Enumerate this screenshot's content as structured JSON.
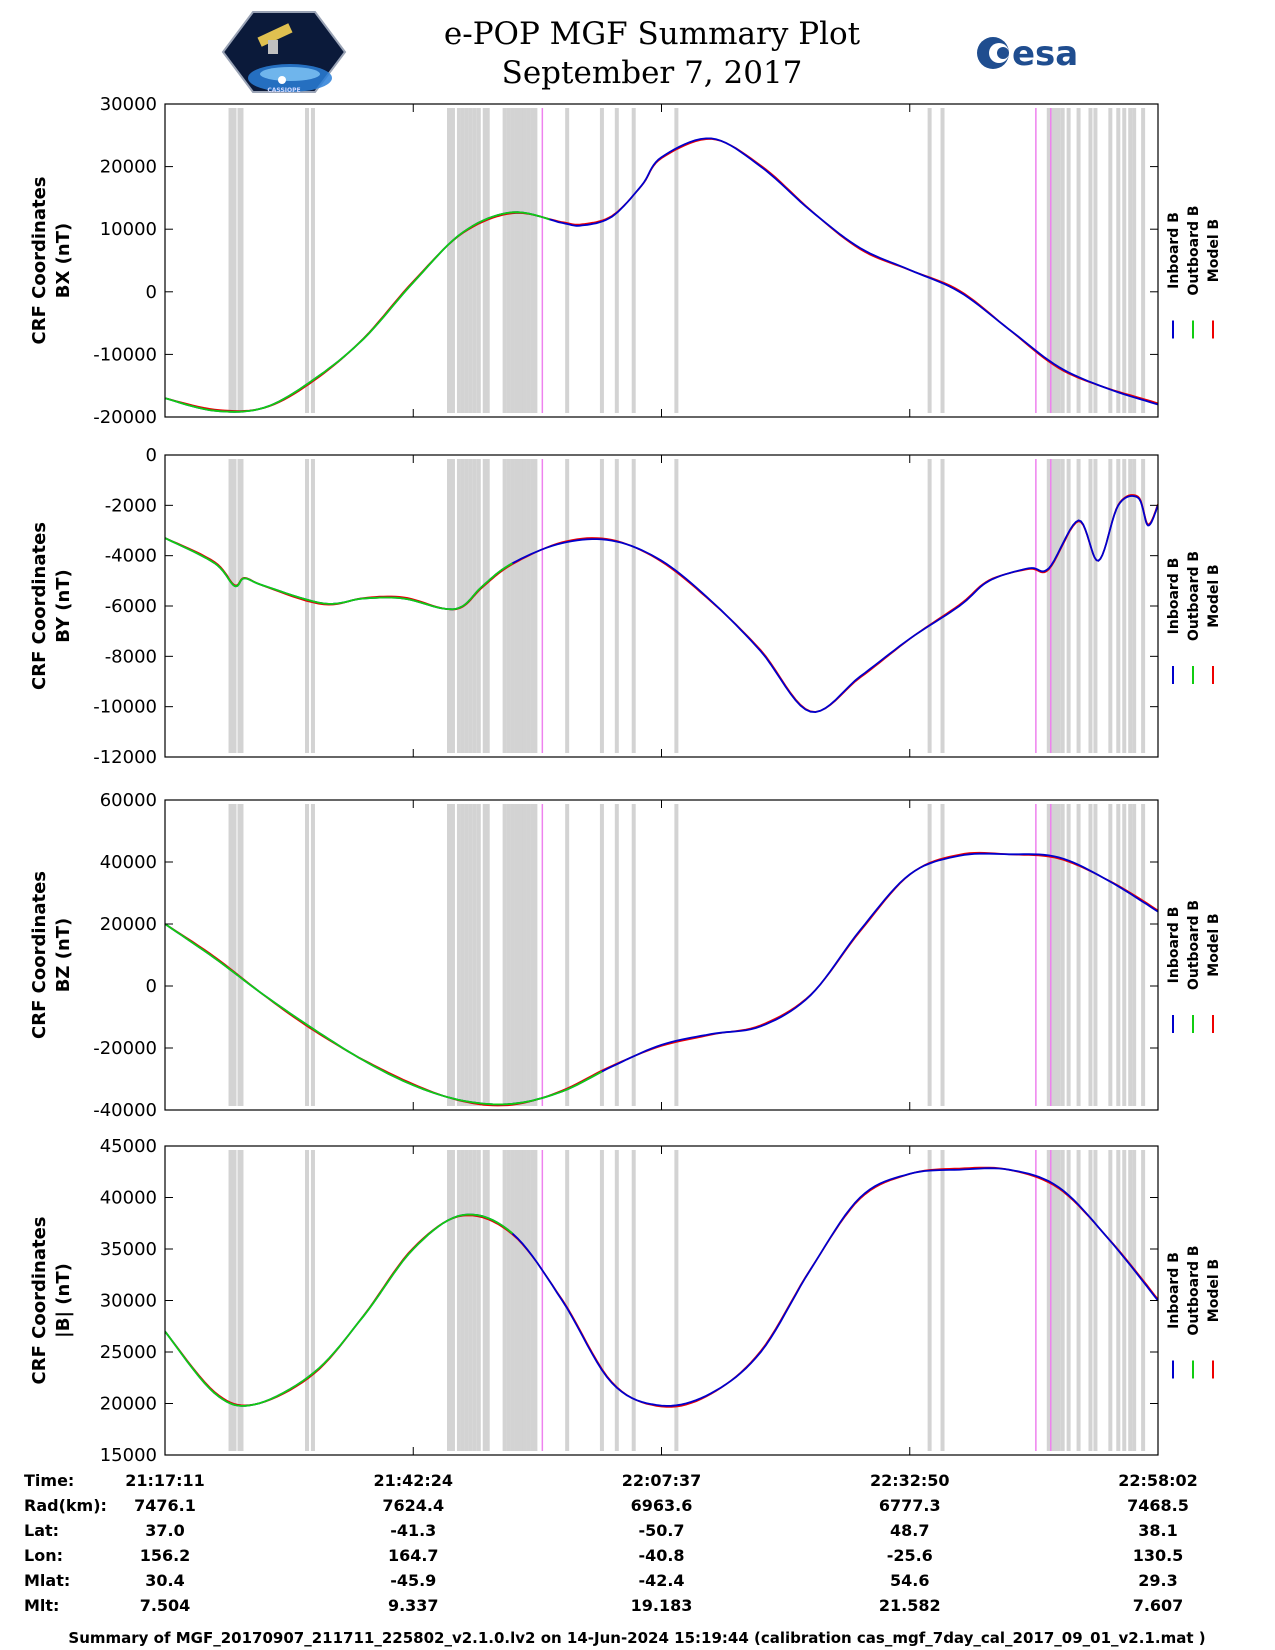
{
  "header": {
    "title": "e-POP MGF Summary Plot",
    "date": "September 7, 2017",
    "logo_left": "CASSIOPE",
    "logo_right": "esa"
  },
  "colors": {
    "inboard": "#0000cc",
    "outboard": "#11cc11",
    "model": "#ee0000",
    "gap_gray": "#d3d3d3",
    "gap_magenta": "#ee82ee"
  },
  "legend": {
    "inboard": "Inboard B",
    "outboard": "Outboard B",
    "model": "Model B"
  },
  "chart_data": [
    {
      "type": "line",
      "id": "bx",
      "ylabel": [
        "CRF Coordinates",
        "BX (nT)"
      ],
      "ylim": [
        -20000,
        30000
      ],
      "yticks": [
        -20000,
        -10000,
        0,
        10000,
        20000,
        30000
      ],
      "ytick_labels": [
        "-20000",
        "-10000",
        "0",
        "10000",
        "20000",
        "30000"
      ],
      "x": [
        0,
        5,
        10,
        15,
        20,
        25,
        30,
        35,
        40,
        42,
        45,
        48,
        50,
        55,
        60,
        65,
        70,
        75,
        80,
        85,
        90,
        95,
        100
      ],
      "values": [
        -17000,
        -19000,
        -18500,
        -14000,
        -7500,
        1500,
        9500,
        12700,
        11000,
        10600,
        12000,
        17000,
        21500,
        24500,
        20000,
        13000,
        7000,
        3500,
        0,
        -6000,
        -12000,
        -15500,
        -18000
      ],
      "series_ranges": {
        "outboard_end": 39
      }
    },
    {
      "type": "line",
      "id": "by",
      "ylabel": [
        "CRF Coordinates",
        "BY (nT)"
      ],
      "ylim": [
        -12000,
        0
      ],
      "yticks": [
        -12000,
        -10000,
        -8000,
        -6000,
        -4000,
        -2000,
        0
      ],
      "ytick_labels": [
        "-12000",
        "-10000",
        "-8000",
        "-6000",
        "-4000",
        "-2000",
        "0"
      ],
      "x": [
        0,
        5,
        7,
        8,
        10,
        16,
        20,
        24,
        28,
        30,
        32,
        35,
        40,
        45,
        50,
        55,
        60,
        65,
        70,
        75,
        80,
        83,
        87,
        89,
        92,
        94,
        96,
        98,
        99,
        100
      ],
      "values": [
        -3300,
        -4300,
        -5200,
        -4900,
        -5200,
        -5900,
        -5700,
        -5700,
        -6100,
        -6000,
        -5200,
        -4300,
        -3500,
        -3400,
        -4200,
        -5800,
        -7800,
        -10200,
        -8800,
        -7300,
        -6000,
        -5000,
        -4500,
        -4500,
        -2600,
        -4200,
        -2000,
        -1700,
        -2800,
        -2000
      ],
      "series_ranges": {
        "outboard_end": 35
      }
    },
    {
      "type": "line",
      "id": "bz",
      "ylabel": [
        "CRF Coordinates",
        "BZ (nT)"
      ],
      "ylim": [
        -40000,
        60000
      ],
      "yticks": [
        -40000,
        -20000,
        0,
        20000,
        40000,
        60000
      ],
      "ytick_labels": [
        "-40000",
        "-20000",
        "0",
        "20000",
        "40000",
        "60000"
      ],
      "x": [
        0,
        5,
        10,
        15,
        20,
        25,
        30,
        35,
        40,
        45,
        50,
        55,
        60,
        65,
        70,
        75,
        80,
        85,
        90,
        95,
        100
      ],
      "values": [
        20000,
        9000,
        -3000,
        -14000,
        -24000,
        -32000,
        -37000,
        -38000,
        -34000,
        -26000,
        -19000,
        -15500,
        -13000,
        -3000,
        18000,
        36000,
        42000,
        42500,
        41500,
        34000,
        24000
      ],
      "series_ranges": {
        "outboard_end": 44
      }
    },
    {
      "type": "line",
      "id": "bmag",
      "ylabel": [
        "CRF Coordinates",
        "|B| (nT)"
      ],
      "ylim": [
        15000,
        45000
      ],
      "yticks": [
        15000,
        20000,
        25000,
        30000,
        35000,
        40000,
        45000
      ],
      "ytick_labels": [
        "15000",
        "20000",
        "25000",
        "30000",
        "35000",
        "40000",
        "45000"
      ],
      "x": [
        0,
        5,
        9,
        15,
        20,
        25,
        30,
        35,
        40,
        45,
        50,
        55,
        60,
        65,
        70,
        75,
        80,
        85,
        90,
        95,
        100
      ],
      "values": [
        27000,
        21000,
        19900,
        23000,
        28500,
        35000,
        38300,
        36500,
        30000,
        22000,
        19800,
        21000,
        25000,
        33000,
        40000,
        42300,
        42700,
        42700,
        41000,
        36000,
        30000
      ],
      "series_ranges": {
        "outboard_end": 35
      }
    }
  ],
  "xticks": [
    "21:17:11",
    "21:42:24",
    "22:07:37",
    "22:32:50",
    "22:58:02"
  ],
  "gaps_gray": [
    6.6,
    7.0,
    7.5,
    7.7,
    14.3,
    14.9,
    28.6,
    29.0,
    29.6,
    30.0,
    30.4,
    30.8,
    31.2,
    31.6,
    32.2,
    32.5,
    34.2,
    34.6,
    35.0,
    35.4,
    35.8,
    36.2,
    36.6,
    37.0,
    37.3,
    40.5,
    44.0,
    45.5,
    47.2,
    51.5,
    77.0,
    78.3,
    89.0,
    89.4,
    89.7,
    90.0,
    90.4,
    91.0,
    92.0,
    93.2,
    93.7,
    95.2,
    96.0,
    96.6,
    97.2,
    97.6,
    98.5
  ],
  "gaps_magenta": [
    38.0,
    87.7,
    89.2
  ],
  "ephemeris": {
    "row_labels": [
      "Time:",
      "Rad(km):",
      "Lat:",
      "Lon:",
      "Mlat:",
      "Mlt:"
    ],
    "columns": [
      [
        "21:17:11",
        "7476.1",
        "37.0",
        "156.2",
        "30.4",
        "7.504"
      ],
      [
        "21:42:24",
        "7624.4",
        "-41.3",
        "164.7",
        "-45.9",
        "9.337"
      ],
      [
        "22:07:37",
        "6963.6",
        "-50.7",
        "-40.8",
        "-42.4",
        "19.183"
      ],
      [
        "22:32:50",
        "6777.3",
        "48.7",
        "-25.6",
        "54.6",
        "21.582"
      ],
      [
        "22:58:02",
        "7468.5",
        "38.1",
        "130.5",
        "29.3",
        "7.607"
      ]
    ]
  },
  "footer": "Summary of MGF_20170907_211711_225802_v2.1.0.lv2 on 14-Jun-2024 15:19:44 (calibration cas_mgf_7day_cal_2017_09_01_v2.1.mat )"
}
